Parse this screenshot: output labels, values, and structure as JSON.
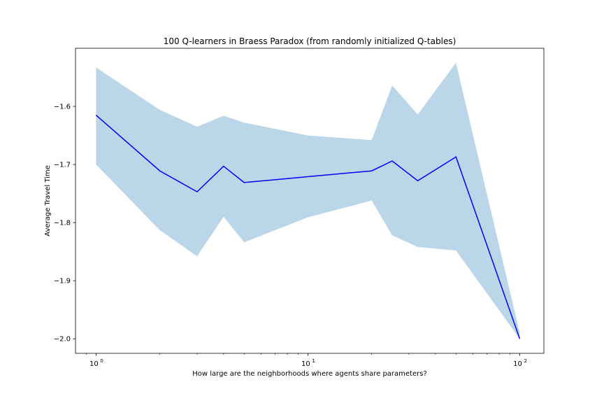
{
  "chart_data": {
    "type": "line",
    "title": "100 Q-learners in Braess Paradox (from randomly initialized Q-tables)",
    "xlabel": "How large are the neighborhoods where agents share parameters?",
    "ylabel": "Average Travel Time",
    "xscale": "log",
    "xlim": [
      0.8,
      130
    ],
    "ylim": [
      -2.025,
      -1.5
    ],
    "xticks": [
      {
        "value": 1,
        "base": "10",
        "exp": "0"
      },
      {
        "value": 10,
        "base": "10",
        "exp": "1"
      },
      {
        "value": 100,
        "base": "10",
        "exp": "2"
      }
    ],
    "yticks": [
      {
        "value": -1.6,
        "label": "−1.6"
      },
      {
        "value": -1.7,
        "label": "−1.7"
      },
      {
        "value": -1.8,
        "label": "−1.8"
      },
      {
        "value": -1.9,
        "label": "−1.9"
      },
      {
        "value": -2.0,
        "label": "−2.0"
      }
    ],
    "grid": false,
    "series": [
      {
        "color": "#0000ff",
        "band_color": "#1f77b4",
        "x": [
          1,
          2,
          3,
          4,
          5,
          10,
          20,
          25,
          33,
          50,
          100
        ],
        "mean": [
          -1.615,
          -1.711,
          -1.747,
          -1.703,
          -1.731,
          -1.721,
          -1.711,
          -1.694,
          -1.728,
          -1.687,
          -2.0
        ],
        "upper": [
          -1.533,
          -1.606,
          -1.635,
          -1.616,
          -1.628,
          -1.65,
          -1.658,
          -1.564,
          -1.614,
          -1.525,
          -1.99
        ],
        "lower": [
          -1.7,
          -1.813,
          -1.858,
          -1.79,
          -1.834,
          -1.791,
          -1.762,
          -1.822,
          -1.842,
          -1.848,
          -2.0
        ]
      }
    ]
  }
}
